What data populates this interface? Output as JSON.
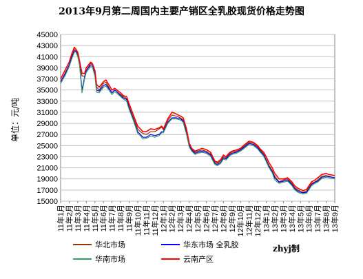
{
  "chart_data": {
    "type": "line",
    "title": "2013年9月第二周国内主要产销区全乳胶现货价格走势图",
    "ylabel": "单位：元/吨",
    "note": "zhyj制",
    "ylim": [
      15000,
      45000
    ],
    "yticks": [
      "45000",
      "43000",
      "41000",
      "39000",
      "37000",
      "35000",
      "33000",
      "31000",
      "29000",
      "27000",
      "25000",
      "23000",
      "21000",
      "19000",
      "17000",
      "15000"
    ],
    "grid": true,
    "legend_position": "bottom",
    "x_labels": [
      "11年1月",
      "11年2月",
      "11年3月",
      "11年4月",
      "11年5月",
      "11年6月",
      "11年7月",
      "11年8月",
      "11年9月",
      "11年10月",
      "11年11月",
      "11年12月",
      "12年1月",
      "12年2月",
      "12年3月",
      "12年4月",
      "12年5月",
      "12年6月",
      "12年7月",
      "12年8月",
      "12年9月",
      "12年10月",
      "12年11月",
      "12年12月",
      "13年1月",
      "13年2月",
      "13年3月",
      "13年4月",
      "13年5月",
      "13年6月",
      "13年7月",
      "13年8月",
      "13年9月"
    ],
    "x": [
      0,
      0.5,
      1,
      1.3,
      1.6,
      1.8,
      2,
      2.2,
      2.5,
      2.8,
      3,
      3.5,
      3.7,
      4,
      4.2,
      4.5,
      5,
      5.3,
      6,
      6.3,
      6.5,
      7,
      7.3,
      7.7,
      8,
      8.5,
      9,
      9.3,
      9.6,
      10,
      10.5,
      11,
      11.5,
      11.8,
      12,
      12.5,
      13,
      13.5,
      14,
      14.3,
      14.7,
      15,
      15.3,
      15.7,
      16,
      16.5,
      17,
      17.5,
      18,
      18.3,
      18.7,
      19,
      19.3,
      19.7,
      20,
      20.5,
      21,
      21.5,
      22,
      22.5,
      23,
      23.3,
      23.7,
      24,
      24.3,
      24.7,
      25,
      25.5,
      26,
      26.5,
      27,
      27.3,
      27.7,
      28,
      28.3,
      28.7,
      29,
      29.3,
      29.7,
      30,
      30.5,
      31,
      31.3,
      31.7,
      32
    ],
    "series": [
      {
        "name": "华北市场",
        "color": "#993300",
        "values": [
          36500,
          38000,
          39500,
          41000,
          42300,
          42000,
          41500,
          40000,
          37500,
          37500,
          38500,
          39800,
          39600,
          38200,
          35500,
          35000,
          36200,
          36400,
          34500,
          35000,
          34800,
          34200,
          33800,
          33500,
          32000,
          30000,
          28000,
          27500,
          27200,
          27000,
          27500,
          27500,
          28000,
          28300,
          27800,
          29500,
          30500,
          30300,
          30000,
          29600,
          27500,
          25200,
          24300,
          23800,
          24000,
          24200,
          24000,
          23500,
          22000,
          21800,
          22300,
          23000,
          22800,
          23500,
          23800,
          24000,
          24300,
          25000,
          25600,
          25400,
          24800,
          24200,
          23500,
          22500,
          21500,
          20500,
          19500,
          18500,
          18800,
          19000,
          18200,
          17500,
          17000,
          16800,
          16600,
          16800,
          17500,
          18200,
          18500,
          18800,
          19500,
          19600,
          19500,
          19300,
          19200
        ]
      },
      {
        "name": "华东市场 全乳胶",
        "color": "#0000ff",
        "values": [
          36500,
          37800,
          39500,
          41000,
          42000,
          42000,
          41200,
          39800,
          35000,
          37300,
          38500,
          39500,
          39500,
          37800,
          35000,
          34800,
          35800,
          36000,
          34500,
          35000,
          34800,
          34000,
          33600,
          33300,
          31800,
          29700,
          27500,
          27000,
          26500,
          26500,
          27000,
          26800,
          27000,
          27500,
          27500,
          29200,
          30000,
          30000,
          29800,
          29400,
          27300,
          25000,
          24200,
          23600,
          23800,
          24000,
          23800,
          23300,
          21800,
          21600,
          22000,
          22800,
          22600,
          23300,
          23600,
          23800,
          24200,
          24800,
          25400,
          25200,
          24600,
          24000,
          23300,
          22300,
          21300,
          20300,
          19200,
          18400,
          18600,
          18800,
          18000,
          17300,
          16800,
          16600,
          16500,
          16600,
          17300,
          18000,
          18400,
          18600,
          19300,
          19500,
          19400,
          19300,
          19200
        ]
      },
      {
        "name": "华南市场",
        "color": "#339966",
        "values": [
          36200,
          37500,
          39200,
          40600,
          41800,
          41800,
          41000,
          39500,
          34500,
          37000,
          38200,
          39200,
          39200,
          37500,
          34600,
          34500,
          35500,
          35700,
          34200,
          34700,
          34500,
          33800,
          33400,
          33000,
          31500,
          29500,
          27200,
          26800,
          26200,
          26300,
          26700,
          26500,
          26800,
          27300,
          27300,
          29000,
          29800,
          29800,
          29600,
          29200,
          27000,
          24800,
          24000,
          23400,
          23600,
          23800,
          23600,
          23100,
          21600,
          21400,
          21800,
          22600,
          22400,
          23100,
          23400,
          23600,
          24000,
          24600,
          25200,
          25000,
          24400,
          23800,
          23100,
          22100,
          21100,
          20100,
          18800,
          18200,
          18400,
          18600,
          17800,
          17100,
          16600,
          16400,
          16300,
          16400,
          17100,
          17800,
          18200,
          18400,
          19100,
          19300,
          19200,
          19100,
          19000
        ]
      },
      {
        "name": "云南产区",
        "color": "#ff0000",
        "values": [
          37000,
          38500,
          40000,
          41500,
          42700,
          42300,
          41800,
          40300,
          38000,
          38000,
          39000,
          40000,
          39800,
          38500,
          36000,
          35500,
          36500,
          36800,
          35000,
          35300,
          35100,
          34500,
          34000,
          33800,
          32500,
          30500,
          28500,
          28000,
          27500,
          27500,
          28000,
          27900,
          28200,
          28500,
          28000,
          29800,
          31000,
          30700,
          30300,
          30000,
          28000,
          25500,
          24500,
          24000,
          24200,
          24500,
          24300,
          23800,
          22200,
          22000,
          22500,
          23300,
          23000,
          23700,
          24000,
          24200,
          24500,
          25200,
          25800,
          25600,
          25000,
          24400,
          23800,
          23000,
          22000,
          21000,
          20000,
          19000,
          19000,
          19200,
          18500,
          17800,
          17300,
          17100,
          16900,
          17100,
          17800,
          18500,
          18800,
          19200,
          19800,
          20000,
          19800,
          19700,
          19600
        ]
      }
    ]
  }
}
